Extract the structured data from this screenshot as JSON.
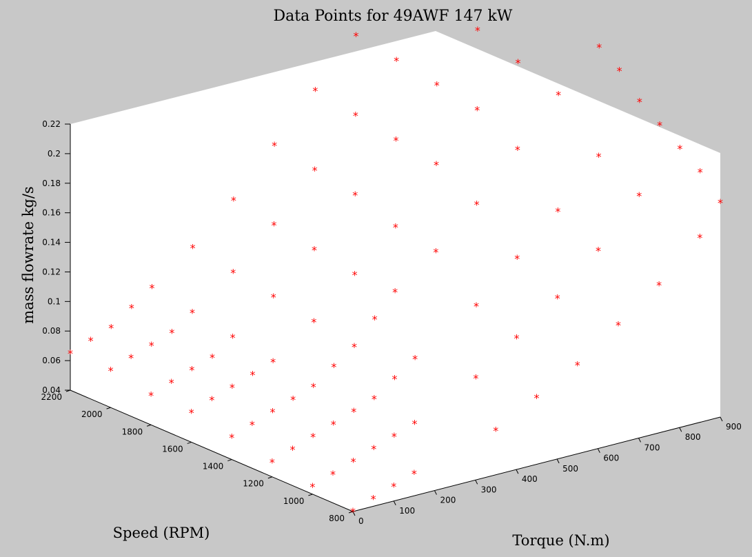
{
  "chart_data": {
    "type": "scatter",
    "title": "Data Points for 49AWF 147 kW",
    "xlabel": "Torque (N.m)",
    "ylabel": "Speed (RPM)",
    "zlabel": "mass flowrate kg/s",
    "xlim": [
      0,
      900
    ],
    "ylim": [
      800,
      2200
    ],
    "zlim": [
      0.04,
      0.22
    ],
    "xticks": [
      "0",
      "100",
      "200",
      "300",
      "400",
      "500",
      "600",
      "700",
      "800",
      "900"
    ],
    "yticks": [
      "800",
      "1000",
      "1200",
      "1400",
      "1600",
      "1800",
      "2000",
      "2200"
    ],
    "zticks": [
      "0.04",
      "0.06",
      "0.08",
      "0.1",
      "0.12",
      "0.14",
      "0.16",
      "0.18",
      "0.2",
      "0.22"
    ],
    "grid": false,
    "marker": "*",
    "marker_color": "#ff0000",
    "points": [
      [
        0,
        800,
        0.04
      ],
      [
        50,
        800,
        0.045
      ],
      [
        100,
        800,
        0.05
      ],
      [
        150,
        800,
        0.055
      ],
      [
        0,
        1000,
        0.045
      ],
      [
        50,
        1000,
        0.05
      ],
      [
        100,
        1000,
        0.055
      ],
      [
        150,
        1000,
        0.06
      ],
      [
        200,
        1000,
        0.065
      ],
      [
        250,
        1000,
        0.07
      ],
      [
        0,
        1200,
        0.05
      ],
      [
        50,
        1200,
        0.055
      ],
      [
        100,
        1200,
        0.06
      ],
      [
        150,
        1200,
        0.065
      ],
      [
        200,
        1200,
        0.07
      ],
      [
        250,
        1200,
        0.075
      ],
      [
        300,
        1200,
        0.085
      ],
      [
        350,
        1200,
        0.095
      ],
      [
        0,
        1400,
        0.055
      ],
      [
        50,
        1400,
        0.06
      ],
      [
        100,
        1400,
        0.065
      ],
      [
        150,
        1400,
        0.07
      ],
      [
        200,
        1400,
        0.075
      ],
      [
        250,
        1400,
        0.085
      ],
      [
        300,
        1400,
        0.095
      ],
      [
        350,
        1400,
        0.11
      ],
      [
        400,
        1400,
        0.125
      ],
      [
        0,
        1600,
        0.06
      ],
      [
        50,
        1600,
        0.065
      ],
      [
        100,
        1600,
        0.07
      ],
      [
        150,
        1600,
        0.075
      ],
      [
        200,
        1600,
        0.08
      ],
      [
        300,
        1600,
        0.1
      ],
      [
        400,
        1600,
        0.125
      ],
      [
        500,
        1600,
        0.15
      ],
      [
        0,
        1800,
        0.06
      ],
      [
        50,
        1800,
        0.065
      ],
      [
        100,
        1800,
        0.07
      ],
      [
        150,
        1800,
        0.075
      ],
      [
        200,
        1800,
        0.085
      ],
      [
        300,
        1800,
        0.105
      ],
      [
        400,
        1800,
        0.13
      ],
      [
        500,
        1800,
        0.16
      ],
      [
        600,
        1800,
        0.19
      ],
      [
        0,
        2000,
        0.065
      ],
      [
        50,
        2000,
        0.07
      ],
      [
        100,
        2000,
        0.075
      ],
      [
        150,
        2000,
        0.08
      ],
      [
        200,
        2000,
        0.09
      ],
      [
        300,
        2000,
        0.11
      ],
      [
        400,
        2000,
        0.135
      ],
      [
        500,
        2000,
        0.165
      ],
      [
        600,
        2000,
        0.195
      ],
      [
        700,
        2000,
        0.225
      ],
      [
        0,
        2200,
        0.065
      ],
      [
        50,
        2200,
        0.07
      ],
      [
        100,
        2200,
        0.075
      ],
      [
        150,
        2200,
        0.085
      ],
      [
        200,
        2200,
        0.095
      ],
      [
        300,
        2200,
        0.115
      ],
      [
        400,
        2200,
        0.14
      ],
      [
        500,
        2200,
        0.17
      ],
      [
        600,
        2200,
        0.2
      ],
      [
        700,
        2200,
        0.23
      ],
      [
        800,
        2200,
        0.25
      ],
      [
        500,
        1400,
        0.145
      ],
      [
        600,
        1400,
        0.17
      ],
      [
        700,
        1400,
        0.2
      ],
      [
        800,
        1400,
        0.23
      ],
      [
        900,
        1400,
        0.255
      ],
      [
        500,
        1200,
        0.12
      ],
      [
        600,
        1200,
        0.145
      ],
      [
        700,
        1200,
        0.17
      ],
      [
        800,
        1200,
        0.2
      ],
      [
        900,
        1200,
        0.23
      ],
      [
        400,
        1000,
        0.09
      ],
      [
        500,
        1000,
        0.11
      ],
      [
        600,
        1000,
        0.13
      ],
      [
        700,
        1000,
        0.155
      ],
      [
        800,
        1000,
        0.185
      ],
      [
        900,
        1000,
        0.21
      ],
      [
        350,
        800,
        0.07
      ],
      [
        450,
        800,
        0.085
      ],
      [
        550,
        800,
        0.1
      ],
      [
        650,
        800,
        0.12
      ],
      [
        750,
        800,
        0.14
      ],
      [
        850,
        800,
        0.165
      ],
      [
        600,
        1600,
        0.185
      ],
      [
        700,
        1600,
        0.215
      ],
      [
        800,
        1600,
        0.24
      ],
      [
        700,
        1800,
        0.22
      ],
      [
        800,
        1800,
        0.25
      ],
      [
        900,
        800,
        0.185
      ],
      [
        900,
        900,
        0.2
      ],
      [
        900,
        1100,
        0.22
      ],
      [
        900,
        1300,
        0.245
      ]
    ]
  }
}
